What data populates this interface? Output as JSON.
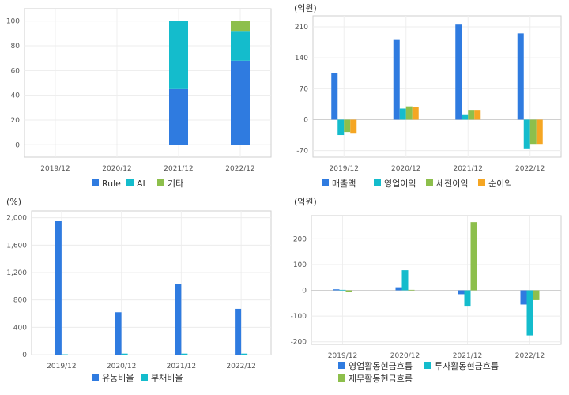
{
  "chart_data": [
    {
      "id": "c1",
      "type": "bar",
      "stacked": true,
      "unit": "",
      "categories": [
        "2019/12",
        "2020/12",
        "2021/12",
        "2022/12"
      ],
      "ylim": [
        -10,
        110
      ],
      "yticks": [
        0,
        20,
        40,
        60,
        80,
        100
      ],
      "ytick_labels": [
        "0",
        "20",
        "40",
        "60",
        "80",
        "100"
      ],
      "grid": true,
      "legend_position": "bottom",
      "series": [
        {
          "name": "Rule",
          "color": "#2f7be0",
          "values": [
            0,
            0,
            45,
            68
          ]
        },
        {
          "name": "AI",
          "color": "#14bccc",
          "values": [
            0,
            0,
            55,
            24
          ]
        },
        {
          "name": "기타",
          "color": "#8dbf4c",
          "values": [
            0,
            0,
            0,
            8
          ]
        }
      ]
    },
    {
      "id": "c2",
      "type": "bar",
      "stacked": false,
      "unit": "(억원)",
      "categories": [
        "2019/12",
        "2020/12",
        "2021/12",
        "2022/12"
      ],
      "ylim": [
        -85,
        235
      ],
      "yticks": [
        -70,
        0,
        70,
        140,
        210
      ],
      "ytick_labels": [
        "-70",
        "0",
        "70",
        "140",
        "210"
      ],
      "grid": true,
      "legend_position": "bottom",
      "series": [
        {
          "name": "매출액",
          "color": "#2f7be0",
          "values": [
            105,
            182,
            215,
            195
          ]
        },
        {
          "name": "영업이익",
          "color": "#14bccc",
          "values": [
            -35,
            25,
            12,
            -65
          ]
        },
        {
          "name": "세전이익",
          "color": "#8dbf4c",
          "values": [
            -28,
            30,
            22,
            -55
          ]
        },
        {
          "name": "순이익",
          "color": "#f5a623",
          "values": [
            -30,
            28,
            22,
            -55
          ]
        }
      ]
    },
    {
      "id": "c3",
      "type": "bar",
      "stacked": false,
      "unit": "(%)",
      "categories": [
        "2019/12",
        "2020/12",
        "2021/12",
        "2022/12"
      ],
      "ylim": [
        0,
        2100
      ],
      "yticks": [
        0,
        400,
        800,
        1200,
        1600,
        2000
      ],
      "ytick_labels": [
        "0",
        "400",
        "800",
        "1,200",
        "1,600",
        "2,000"
      ],
      "grid": true,
      "legend_position": "bottom",
      "series": [
        {
          "name": "유동비율",
          "color": "#2f7be0",
          "values": [
            1950,
            620,
            1030,
            670
          ]
        },
        {
          "name": "부채비율",
          "color": "#14bccc",
          "values": [
            5,
            15,
            15,
            15
          ]
        }
      ]
    },
    {
      "id": "c4",
      "type": "bar",
      "stacked": false,
      "unit": "(억원)",
      "categories": [
        "2019/12",
        "2020/12",
        "2021/12",
        "2022/12"
      ],
      "ylim": [
        -210,
        290
      ],
      "yticks": [
        -200,
        -100,
        0,
        100,
        200
      ],
      "ytick_labels": [
        "-200",
        "-100",
        "0",
        "100",
        "200"
      ],
      "grid": true,
      "legend_position": "bottom",
      "series": [
        {
          "name": "영업활동현금흐름",
          "color": "#2f7be0",
          "values": [
            4,
            12,
            -15,
            -55
          ]
        },
        {
          "name": "투자활동현금흐름",
          "color": "#14bccc",
          "values": [
            2,
            78,
            -60,
            -175
          ]
        },
        {
          "name": "재무활동현금흐름",
          "color": "#8dbf4c",
          "values": [
            -5,
            2,
            265,
            -38
          ]
        }
      ]
    }
  ]
}
